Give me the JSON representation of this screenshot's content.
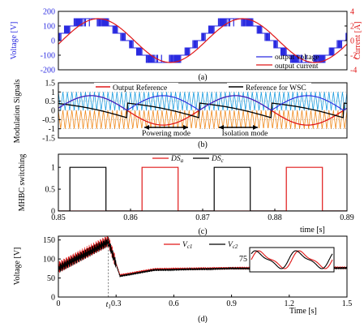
{
  "colors": {
    "voltage": "#2a2ae0",
    "current": "#e01818",
    "black": "#000000",
    "orange": "#f08a1e",
    "cyan": "#1e9ee0",
    "blue_ref": "#2a2ae0"
  },
  "chart_data": [
    {
      "panel": "a",
      "type": "line",
      "caption": "(a)",
      "ylabel": "Voltage [V]",
      "ylabel_right": "Current [A]",
      "ylim": [
        -200,
        200
      ],
      "yticks": [
        "200",
        "100",
        "0",
        "-100",
        "-200"
      ],
      "ylim_right": [
        -4,
        4
      ],
      "yticks_right": [
        "4",
        "2",
        "0",
        "-2",
        "-4"
      ],
      "grid": false,
      "legend_position": "bottom-right",
      "series": [
        {
          "name": "output voltage",
          "style": "multilevel staircase PWM",
          "levels": [
            -150,
            -100,
            -50,
            0,
            50,
            100,
            150
          ],
          "cycles": 2
        },
        {
          "name": "output current",
          "style": "sinusoid",
          "amplitude": 3,
          "phase_lag_deg": 18,
          "cycles": 2
        }
      ]
    },
    {
      "panel": "b",
      "type": "line",
      "caption": "(b)",
      "ylabel": "Modulation Signals",
      "ylim": [
        -1.5,
        1.5
      ],
      "yticks": [
        "1.5",
        "1",
        "0.5",
        "0",
        "-0.5",
        "-1",
        "-1.5"
      ],
      "grid": true,
      "legend_position": "top",
      "series": [
        {
          "name": "Output Reference",
          "style": "sinusoid",
          "amplitude": 0.8
        },
        {
          "name": "Reference for WSC",
          "style": "rectified folded sinusoid",
          "amplitude": 0.8
        },
        {
          "name": "carriers",
          "style": "stacked triangular carriers",
          "amplitude": 1
        }
      ],
      "annotations": [
        {
          "text": "Powering mode"
        },
        {
          "text": "Isolation mode"
        }
      ]
    },
    {
      "panel": "c",
      "type": "line",
      "caption": "(c)",
      "ylabel": "MHBC switching",
      "ylim": [
        0,
        1.3
      ],
      "yticks": [
        "1",
        "0.5",
        "0"
      ],
      "xlim": [
        0.85,
        0.89
      ],
      "xticks": [
        "0.85",
        "0.86",
        "0.87",
        "0.88",
        "0.89"
      ],
      "xlabel": "time [s]",
      "grid": false,
      "legend_position": "top",
      "series": [
        {
          "name": "DSa",
          "legend_label": "DS",
          "legend_sub": "a",
          "pulses": [
            [
              0.8616,
              0.8666
            ],
            [
              0.8816,
              0.8866
            ]
          ]
        },
        {
          "name": "DSc",
          "legend_label": "DS",
          "legend_sub": "c",
          "pulses": [
            [
              0.8516,
              0.8566
            ],
            [
              0.8716,
              0.8766
            ]
          ]
        }
      ]
    },
    {
      "panel": "d",
      "type": "line",
      "caption": "(d)",
      "ylabel": "Voltage [V]",
      "ylim": [
        0,
        160
      ],
      "yticks": [
        "150",
        "100",
        "50",
        "0"
      ],
      "xlim": [
        0,
        1.5
      ],
      "xticks": [
        "0",
        "0.3",
        "0.6",
        "0.9",
        "1.2",
        "1.5"
      ],
      "xlabel": "Time [s]",
      "marker_label": "t",
      "marker_sub": "1",
      "marker_time": 0.26,
      "inset_label": "75",
      "grid": false,
      "legend_position": "top-right",
      "series": [
        {
          "name": "Vc1",
          "legend_label": "V",
          "legend_sub": "c1",
          "points": [
            [
              0,
              78
            ],
            [
              0.26,
              148
            ],
            [
              0.32,
              57
            ],
            [
              0.5,
              73
            ],
            [
              0.9,
              76
            ],
            [
              1.5,
              77
            ]
          ],
          "ripple_amplitude": 10
        },
        {
          "name": "Vc2",
          "legend_label": "V",
          "legend_sub": "c2",
          "points": [
            [
              0,
              75
            ],
            [
              0.26,
              145
            ],
            [
              0.32,
              55
            ],
            [
              0.5,
              71
            ],
            [
              0.9,
              75
            ],
            [
              1.5,
              76
            ]
          ],
          "ripple_amplitude": 8
        }
      ]
    }
  ]
}
